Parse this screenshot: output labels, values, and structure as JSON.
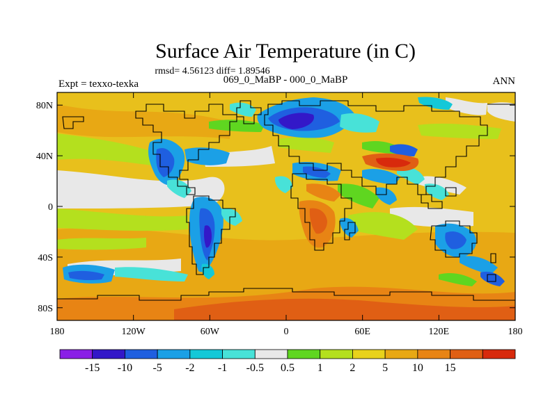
{
  "title": "Surface Air Temperature (in C)",
  "stats_line": "rmsd= 4.56123 diff= 1.89546",
  "left_label": "Expt = texxo-texka",
  "center_label": "069_0_MaBP - 000_0_MaBP",
  "right_label": "ANN",
  "y_axis": {
    "ticks": [
      {
        "value": 80,
        "label": "80N"
      },
      {
        "value": 40,
        "label": "40N"
      },
      {
        "value": 0,
        "label": "0"
      },
      {
        "value": -40,
        "label": "40S"
      },
      {
        "value": -80,
        "label": "80S"
      }
    ],
    "range": [
      -90,
      90
    ]
  },
  "x_axis": {
    "ticks": [
      {
        "value": -180,
        "label": "180"
      },
      {
        "value": -120,
        "label": "120W"
      },
      {
        "value": -60,
        "label": "60W"
      },
      {
        "value": 0,
        "label": "0"
      },
      {
        "value": 60,
        "label": "60E"
      },
      {
        "value": 120,
        "label": "120E"
      },
      {
        "value": 180,
        "label": "180"
      }
    ],
    "range": [
      -180,
      180
    ]
  },
  "colorbar": {
    "colors": [
      "#8a1fe6",
      "#3318c8",
      "#1f5fe0",
      "#1ba0e6",
      "#14c8d8",
      "#48e2d8",
      "#e8e8e8",
      "#5fd620",
      "#b4e01e",
      "#e8d21c",
      "#e8a814",
      "#e88414",
      "#e05f14",
      "#d82a0c"
    ],
    "labels": [
      "-15",
      "-10",
      "-5",
      "-2",
      "-1",
      "-0.5",
      "0.5",
      "1",
      "2",
      "5",
      "10",
      "15"
    ]
  },
  "field_colors": {
    "ocean_mid": "#e8c01c",
    "warm": "#e8a814",
    "hot": "#e88414",
    "very_hot": "#e05f14",
    "neutral": "#e8e8e8",
    "light_green": "#b4e01e",
    "green": "#5fd620",
    "cyan": "#48e2d8",
    "light_blue": "#1ba0e6",
    "blue": "#1f5fe0",
    "dark_blue": "#3318c8",
    "purple": "#8a1fe6"
  }
}
